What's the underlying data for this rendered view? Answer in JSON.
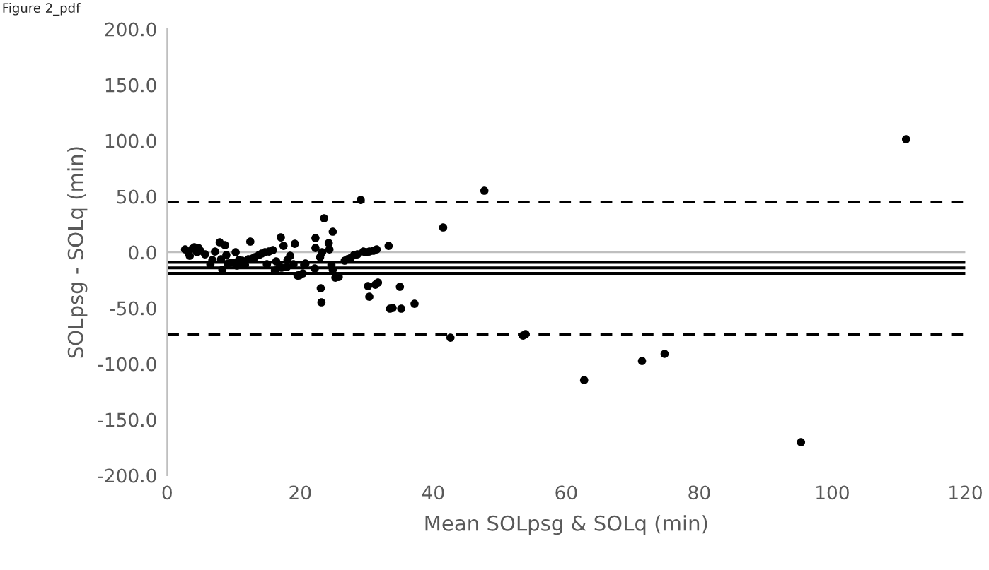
{
  "chart_data": {
    "type": "scatter",
    "title": "Figure 2_pdf",
    "xlabel": "Mean SOLpsg & SOLq (min)",
    "ylabel": "SOLpsg - SOLq (min)",
    "x": [
      2.7,
      3.2,
      3.8,
      3.4,
      4.1,
      4.7,
      4.5,
      5.0,
      5.7,
      6.5,
      6.8,
      7.2,
      7.9,
      8.1,
      8.3,
      8.7,
      8.9,
      9.1,
      9.6,
      10.0,
      10.3,
      10.5,
      10.8,
      11.3,
      11.7,
      12.2,
      12.5,
      12.8,
      13.2,
      13.8,
      14.2,
      14.7,
      15.0,
      15.3,
      15.9,
      16.2,
      16.4,
      16.9,
      17.2,
      17.1,
      17.5,
      18.0,
      18.1,
      18.5,
      19.0,
      19.2,
      19.6,
      20.0,
      20.4,
      19.8,
      20.6,
      20.8,
      22.2,
      22.3,
      22.3,
      23.0,
      23.3,
      23.2,
      23.6,
      23.1,
      24.3,
      24.4,
      24.7,
      24.9,
      24.9,
      25.3,
      25.8,
      26.7,
      27.1,
      27.6,
      28.1,
      28.6,
      29.1,
      29.5,
      29.9,
      30.4,
      31.0,
      31.5,
      30.2,
      30.4,
      31.3,
      31.7,
      33.3,
      33.5,
      33.9,
      35.0,
      35.2,
      37.2,
      41.5,
      42.6,
      47.7,
      53.5,
      53.9,
      62.7,
      71.4,
      74.8,
      95.3,
      111.1
    ],
    "values": [
      2.5,
      -0.6,
      3.2,
      -3.2,
      4.4,
      3.8,
      0,
      1.3,
      -1.9,
      -10.8,
      -7.0,
      0.6,
      8.9,
      -6.3,
      -15.8,
      6.3,
      -2.5,
      -10.1,
      -9.5,
      -9.5,
      0,
      -12.0,
      -7.0,
      -7.6,
      -11.4,
      -6.3,
      9.5,
      -5.7,
      -4.4,
      -2.5,
      -1.3,
      0,
      -10.8,
      0.6,
      1.9,
      -16.5,
      -8.2,
      -13.3,
      -13.9,
      13.3,
      5.7,
      -13.3,
      -7.0,
      -3.2,
      -10.8,
      7.6,
      -20.9,
      -20.3,
      -19.0,
      -20.9,
      -11.4,
      -10.1,
      -14.6,
      3.8,
      12.7,
      -4.4,
      0,
      -44.9,
      30.4,
      -32.3,
      8.2,
      2.5,
      -11.4,
      -15.8,
      18.4,
      -22.8,
      -22.2,
      -7.6,
      -6.3,
      -5.1,
      -2.5,
      -1.9,
      46.8,
      0.6,
      0,
      0.6,
      1.3,
      2.5,
      -30.4,
      -39.9,
      -29.1,
      -27.2,
      5.7,
      -50.6,
      -50.0,
      -31.0,
      -50.6,
      -46.2,
      22.2,
      -76.6,
      55.1,
      -74.7,
      -73.4,
      -114.6,
      -97.5,
      -91.1,
      -170.3,
      101.3
    ],
    "color": "#000000",
    "marker": "circle",
    "xlim": [
      0,
      120
    ],
    "xticks": [
      0,
      20,
      40,
      60,
      80,
      100,
      120
    ],
    "ylim": [
      -200,
      200
    ],
    "yticks": [
      {
        "value": -200,
        "label": "-200.0"
      },
      {
        "value": -150,
        "label": "-150.0"
      },
      {
        "value": -100,
        "label": "-100.0"
      },
      {
        "value": -50,
        "label": "-50.0"
      },
      {
        "value": 0,
        "label": "0.0"
      },
      {
        "value": 50,
        "label": "50.0"
      },
      {
        "value": 100,
        "label": "100.0"
      },
      {
        "value": 150,
        "label": "150.0"
      },
      {
        "value": 200,
        "label": "200.0"
      }
    ],
    "ref_lines": [
      {
        "axis": "y",
        "value": 0,
        "color": "#bfbfbf",
        "line_style": "solid"
      },
      {
        "axis": "y",
        "value": -14,
        "color": "#000000",
        "line_style": "solid"
      },
      {
        "axis": "y",
        "value": -9,
        "color": "#000000",
        "line_style": "solid"
      },
      {
        "axis": "y",
        "value": -19,
        "color": "#000000",
        "line_style": "solid"
      },
      {
        "axis": "y",
        "value": 45,
        "color": "#000000",
        "line_style": "dashed"
      },
      {
        "axis": "y",
        "value": -74,
        "color": "#000000",
        "line_style": "dashed"
      }
    ],
    "grid": false,
    "legend": false
  }
}
